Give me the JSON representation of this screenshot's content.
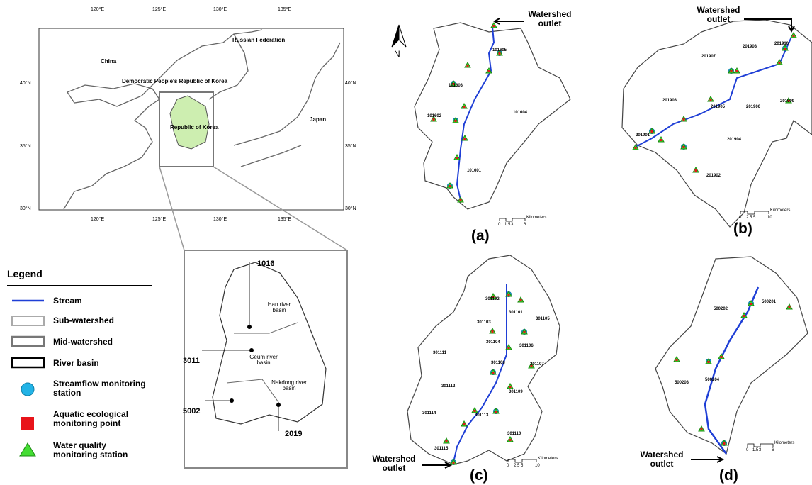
{
  "locator_map": {
    "lon_labels": [
      "120°E",
      "125°E",
      "130°E",
      "135°E"
    ],
    "lat_labels": [
      "40°N",
      "35°N",
      "30°N"
    ],
    "countries": [
      "China",
      "Russian Federation",
      "Democratic People's Republic of Korea",
      "Republic of Korea",
      "Japan"
    ]
  },
  "inset": {
    "stations": [
      "1016",
      "3011",
      "5002",
      "2019"
    ],
    "basins": [
      "Han river basin",
      "Geum river basin",
      "Nakdong river basin"
    ]
  },
  "legend": {
    "title": "Legend",
    "items": [
      "Stream",
      "Sub-watershed",
      "Mid-watershed",
      "River basin",
      "Streamflow monitoring station",
      "Aquatic ecological monitoring point",
      "Water quality monitoring station"
    ]
  },
  "north": "N",
  "panels": [
    {
      "label": "(a)",
      "outlet": "Watershed outlet",
      "subwatersheds": [
        "101601",
        "101602",
        "101603",
        "101604",
        "101605"
      ],
      "scale_ticks": [
        "0",
        "1.5",
        "3",
        "6"
      ],
      "scale_unit": "Kilometers"
    },
    {
      "label": "(b)",
      "outlet": "Watershed outlet",
      "subwatersheds": [
        "201901",
        "201902",
        "201903",
        "201904",
        "201905",
        "201906",
        "201907",
        "201908",
        "201909",
        "201910"
      ],
      "scale_ticks": [
        "0",
        "2.5",
        "5",
        "10"
      ],
      "scale_unit": "Kilometers"
    },
    {
      "label": "(c)",
      "outlet": "Watershed outlet",
      "subwatersheds": [
        "301101",
        "301102",
        "301103",
        "301104",
        "301105",
        "301106",
        "301107",
        "301108",
        "301109",
        "301110",
        "301111",
        "301112",
        "301113",
        "301114",
        "301115"
      ],
      "scale_ticks": [
        "0",
        "2.5",
        "5",
        "10"
      ],
      "scale_unit": "Kilometers"
    },
    {
      "label": "(d)",
      "outlet": "Watershed outlet",
      "subwatersheds": [
        "500201",
        "500202",
        "500203",
        "500204"
      ],
      "scale_ticks": [
        "0",
        "1.5",
        "3",
        "6"
      ],
      "scale_unit": "Kilometers"
    }
  ]
}
